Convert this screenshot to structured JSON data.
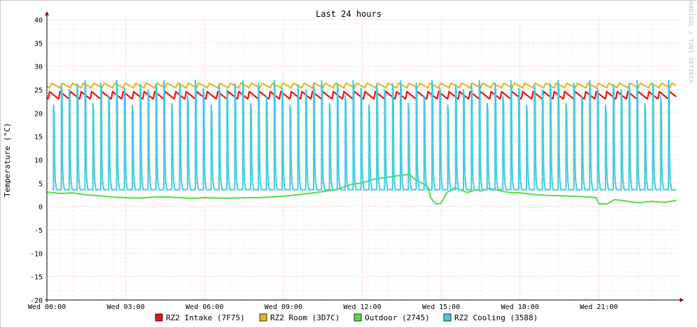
{
  "watermark": "RRDTOOL / TOBI OETIKER",
  "colors": {
    "grid_minor": "#ececec",
    "grid_major": "#f0b0b0",
    "axis": "#a00000",
    "text": "#000000",
    "intake": "#ee1111",
    "room": "#e6b81f",
    "outdoor": "#55dd44",
    "cooling": "#44cce0"
  },
  "chart_data": {
    "type": "line",
    "title": "Last 24 hours",
    "ylabel": "Temperature (°C)",
    "xlabel": "",
    "ylim": [
      -20,
      40
    ],
    "xlim": [
      0,
      24
    ],
    "x_unit": "hours since Wed 00:00",
    "y_ticks": [
      "40",
      "35",
      "30",
      "25",
      "20",
      "15",
      "10",
      "5",
      "0",
      "-5",
      "-10",
      "-15",
      "-20"
    ],
    "x_ticks": [
      {
        "x": 0,
        "label": "Wed 00:00"
      },
      {
        "x": 3,
        "label": "Wed 03:00"
      },
      {
        "x": 6,
        "label": "Wed 06:00"
      },
      {
        "x": 9,
        "label": "Wed 09:00"
      },
      {
        "x": 12,
        "label": "Wed 12:00"
      },
      {
        "x": 15,
        "label": "Wed 15:00"
      },
      {
        "x": 18,
        "label": "Wed 18:00"
      },
      {
        "x": 21,
        "label": "Wed 21:00"
      }
    ],
    "grid": true,
    "legend_position": "bottom",
    "series": [
      {
        "name": "RZ2 Intake (7F75)",
        "color_key": "intake",
        "style": "sawtooth",
        "base": 23.0,
        "peak": 24.6,
        "period_h": 0.4,
        "phase_h": 0.05,
        "start_h": 0.0,
        "end_h": 23.95
      },
      {
        "name": "RZ2 Room (3D7C)",
        "color_key": "room",
        "style": "wave",
        "base": 25.9,
        "amp": 0.5,
        "period_h": 0.4,
        "phase_h": 0.1,
        "start_h": 0.0,
        "end_h": 23.95
      },
      {
        "name": "Outdoor (2745)",
        "color_key": "outdoor",
        "style": "polyline",
        "points": [
          [
            0.0,
            3.1
          ],
          [
            0.5,
            2.8
          ],
          [
            1.0,
            2.9
          ],
          [
            1.5,
            2.5
          ],
          [
            2.0,
            2.3
          ],
          [
            2.5,
            2.0
          ],
          [
            3.0,
            1.9
          ],
          [
            3.5,
            1.8
          ],
          [
            4.0,
            2.0
          ],
          [
            4.5,
            2.1
          ],
          [
            5.0,
            1.9
          ],
          [
            5.5,
            1.7
          ],
          [
            6.0,
            1.9
          ],
          [
            6.5,
            1.8
          ],
          [
            7.0,
            1.8
          ],
          [
            7.5,
            1.9
          ],
          [
            8.0,
            1.9
          ],
          [
            8.5,
            2.0
          ],
          [
            9.0,
            2.2
          ],
          [
            9.5,
            2.5
          ],
          [
            10.0,
            2.8
          ],
          [
            10.5,
            3.2
          ],
          [
            11.0,
            3.6
          ],
          [
            11.5,
            4.6
          ],
          [
            12.0,
            5.1
          ],
          [
            12.5,
            5.9
          ],
          [
            13.0,
            6.3
          ],
          [
            13.5,
            6.7
          ],
          [
            13.8,
            6.9
          ],
          [
            14.0,
            5.8
          ],
          [
            14.3,
            4.9
          ],
          [
            14.5,
            4.2
          ],
          [
            14.6,
            1.9
          ],
          [
            14.8,
            0.5
          ],
          [
            15.0,
            0.7
          ],
          [
            15.2,
            2.9
          ],
          [
            15.5,
            4.0
          ],
          [
            15.7,
            3.6
          ],
          [
            16.0,
            3.0
          ],
          [
            16.3,
            3.6
          ],
          [
            16.5,
            3.3
          ],
          [
            16.8,
            3.8
          ],
          [
            17.0,
            3.7
          ],
          [
            17.3,
            3.3
          ],
          [
            17.6,
            3.0
          ],
          [
            18.0,
            2.9
          ],
          [
            18.5,
            2.6
          ],
          [
            19.0,
            2.4
          ],
          [
            19.5,
            2.3
          ],
          [
            20.0,
            2.2
          ],
          [
            20.5,
            2.1
          ],
          [
            20.9,
            1.9
          ],
          [
            21.0,
            0.6
          ],
          [
            21.3,
            0.5
          ],
          [
            21.6,
            1.5
          ],
          [
            22.0,
            1.2
          ],
          [
            22.5,
            0.8
          ],
          [
            23.0,
            1.1
          ],
          [
            23.5,
            0.9
          ],
          [
            23.95,
            1.3
          ]
        ]
      },
      {
        "name": "RZ2 Cooling (3588)",
        "color_key": "cooling",
        "style": "pulses",
        "base": 3.6,
        "period_h": 0.3,
        "start_h": 0.2,
        "end_h": 23.95,
        "width_h": 0.09,
        "peaks": [
          21.7,
          26.1,
          25.0,
          26.3,
          26.9,
          22.0,
          26.4,
          23.6,
          27.0,
          25.3
        ]
      }
    ]
  }
}
